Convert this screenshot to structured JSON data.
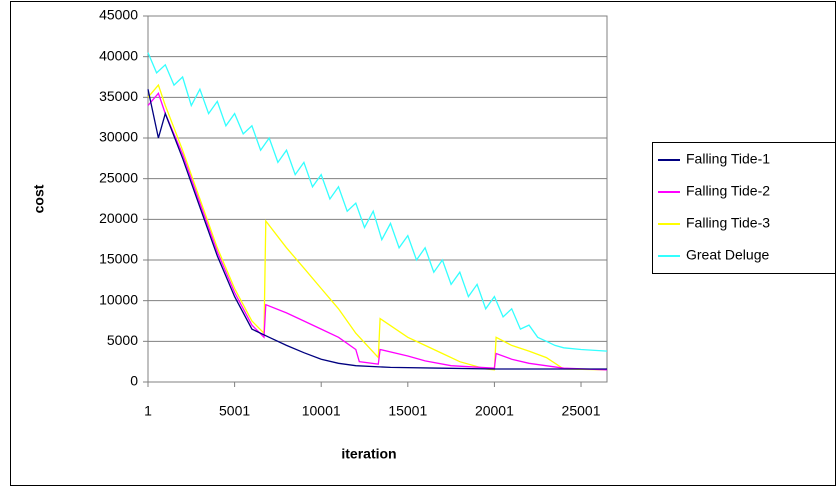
{
  "chart_data": {
    "type": "line",
    "x_label": "iteration",
    "y_label": "cost",
    "xlim": [
      1,
      26501
    ],
    "xticks": [
      1,
      5001,
      10001,
      15001,
      20001,
      25001
    ],
    "ylim": [
      0,
      45000
    ],
    "yticks": [
      0,
      5000,
      10000,
      15000,
      20000,
      25000,
      30000,
      35000,
      40000,
      45000
    ],
    "grid": true,
    "legend": "right",
    "series": [
      {
        "name": "Great Deluge",
        "color": "#33ffff",
        "x": [
          1,
          500,
          1000,
          1500,
          2000,
          2500,
          3000,
          3500,
          4000,
          4500,
          5000,
          5500,
          6000,
          6500,
          7000,
          7500,
          8000,
          8500,
          9000,
          9500,
          10000,
          10500,
          11000,
          11500,
          12000,
          12500,
          13000,
          13500,
          14000,
          14500,
          15000,
          15500,
          16000,
          16500,
          17000,
          17500,
          18000,
          18500,
          19000,
          19500,
          20000,
          20500,
          21000,
          21500,
          22000,
          22500,
          23000,
          23500,
          24000,
          25000,
          26500
        ],
        "values": [
          40500,
          38000,
          39000,
          36500,
          37500,
          34000,
          36000,
          33000,
          34500,
          31500,
          33000,
          30500,
          31500,
          28500,
          30000,
          27000,
          28500,
          25500,
          27000,
          24000,
          25500,
          22500,
          24000,
          21000,
          22000,
          19000,
          21000,
          17500,
          19500,
          16500,
          18000,
          15000,
          16500,
          13500,
          15000,
          12000,
          13500,
          10500,
          12000,
          9000,
          10500,
          8000,
          9000,
          6500,
          7000,
          5500,
          5000,
          4500,
          4200,
          4000,
          3800
        ]
      },
      {
        "name": "Falling Tide-3",
        "color": "#ffff00",
        "x": [
          1,
          600,
          1000,
          2000,
          3000,
          4000,
          5000,
          6000,
          6700,
          6800,
          8000,
          9000,
          10000,
          11000,
          12000,
          13300,
          13400,
          15000,
          16000,
          17000,
          18000,
          19500,
          20000,
          20100,
          21000,
          22000,
          23000,
          24000,
          26500
        ],
        "values": [
          35000,
          36500,
          34000,
          28500,
          22500,
          16500,
          11500,
          7500,
          6000,
          19800,
          16500,
          14000,
          11500,
          9000,
          6000,
          3000,
          7800,
          5500,
          4500,
          3500,
          2500,
          1600,
          1500,
          5500,
          4500,
          3800,
          3000,
          1600,
          1500
        ]
      },
      {
        "name": "Falling Tide-2",
        "color": "#ff00ff",
        "x": [
          1,
          600,
          1000,
          2000,
          3000,
          4000,
          5000,
          6000,
          6700,
          6800,
          8000,
          9000,
          10000,
          11000,
          12000,
          12200,
          13300,
          13400,
          15000,
          16000,
          17500,
          20000,
          20100,
          21000,
          22000,
          24000,
          26500
        ],
        "values": [
          34000,
          35500,
          33000,
          28000,
          22000,
          16000,
          11000,
          7000,
          5500,
          9500,
          8500,
          7500,
          6500,
          5500,
          4000,
          2500,
          2200,
          4000,
          3200,
          2600,
          2000,
          1700,
          3500,
          2800,
          2300,
          1700,
          1500
        ]
      },
      {
        "name": "Falling Tide-1",
        "color": "#000080",
        "x": [
          1,
          600,
          1000,
          2000,
          3000,
          4000,
          5000,
          6000,
          7000,
          8000,
          9000,
          10000,
          11000,
          12000,
          14000,
          17000,
          20000,
          26500
        ],
        "values": [
          36000,
          30000,
          33000,
          27500,
          21500,
          15500,
          10500,
          6500,
          5500,
          4500,
          3600,
          2800,
          2300,
          2000,
          1800,
          1700,
          1600,
          1600
        ]
      }
    ]
  }
}
